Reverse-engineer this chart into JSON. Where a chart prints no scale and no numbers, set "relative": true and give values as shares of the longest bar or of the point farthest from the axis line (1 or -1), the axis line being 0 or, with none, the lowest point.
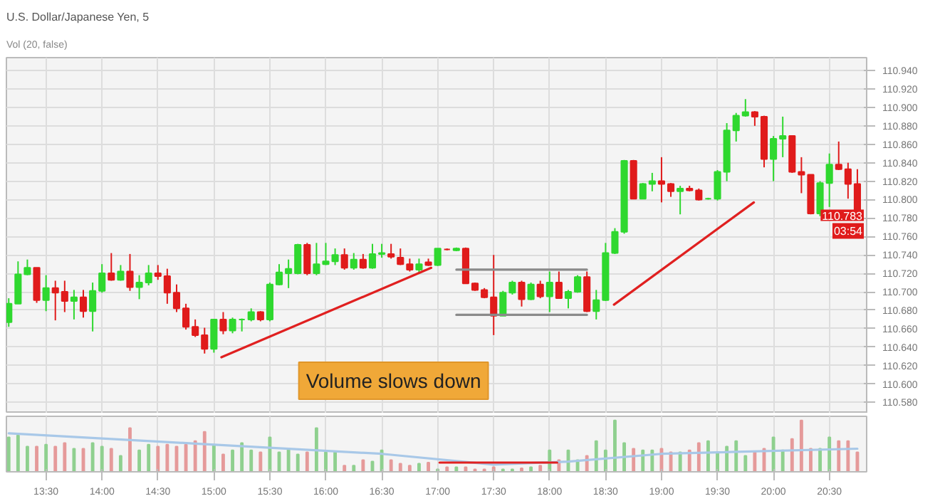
{
  "chart_data": [
    {
      "type": "candlestick",
      "title": "U.S. Dollar/Japanese Yen, 5",
      "subtitle": "Vol (20, false)",
      "x": [
        13.1667,
        13.25,
        13.3333,
        13.4167,
        13.5,
        13.5833,
        13.6667,
        13.75,
        13.8333,
        13.9167,
        14,
        14.0833,
        14.1667,
        14.25,
        14.3333,
        14.4167,
        14.5,
        14.5833,
        14.6667,
        14.75,
        14.8333,
        14.9167,
        15,
        15.0833,
        15.1667,
        15.25,
        15.3333,
        15.4167,
        15.5,
        15.5833,
        15.6667,
        15.75,
        15.8333,
        15.9167,
        16,
        16.0833,
        16.1667,
        16.25,
        16.3333,
        16.4167,
        16.5,
        16.5833,
        16.6667,
        16.75,
        16.8333,
        16.9167,
        17,
        17.0833,
        17.1667,
        17.25,
        17.3333,
        17.4167,
        17.5,
        17.5833,
        17.6667,
        17.75,
        17.8333,
        17.9167,
        18,
        18.0833,
        18.1667,
        18.25,
        18.3333,
        18.4167,
        18.5,
        18.5833,
        18.6667,
        18.75,
        18.8333,
        18.9167,
        19,
        19.0833,
        19.1667,
        19.25,
        19.3333,
        19.4167,
        19.5,
        19.5833,
        19.6667,
        19.75,
        19.8333,
        19.9167,
        20,
        20.0833,
        20.1667,
        20.25,
        20.3333,
        20.4167,
        20.5,
        20.5833,
        20.6667,
        20.75
      ],
      "ohlc": [
        [
          110.667,
          110.693,
          110.662,
          110.687
        ],
        [
          110.687,
          110.733,
          110.687,
          110.719
        ],
        [
          110.719,
          110.735,
          110.718,
          110.726
        ],
        [
          110.726,
          110.726,
          110.688,
          110.691
        ],
        [
          110.691,
          110.718,
          110.679,
          110.704
        ],
        [
          110.704,
          110.712,
          110.669,
          110.699
        ],
        [
          110.7,
          110.712,
          110.678,
          110.69
        ],
        [
          110.69,
          110.702,
          110.67,
          110.694
        ],
        [
          110.694,
          110.702,
          110.672,
          110.679
        ],
        [
          110.679,
          110.71,
          110.657,
          110.701
        ],
        [
          110.701,
          110.73,
          110.699,
          110.72
        ],
        [
          110.72,
          110.742,
          110.712,
          110.713
        ],
        [
          110.713,
          110.729,
          110.712,
          110.722
        ],
        [
          110.722,
          110.741,
          110.701,
          110.705
        ],
        [
          110.705,
          110.718,
          110.692,
          110.71
        ],
        [
          110.71,
          110.729,
          110.707,
          110.72
        ],
        [
          110.72,
          110.729,
          110.713,
          110.717
        ],
        [
          110.717,
          110.725,
          110.687,
          110.699
        ],
        [
          110.699,
          110.708,
          110.678,
          110.682
        ],
        [
          110.682,
          110.687,
          110.659,
          110.662
        ],
        [
          110.662,
          110.67,
          110.651,
          110.653
        ],
        [
          110.653,
          110.661,
          110.633,
          110.638
        ],
        [
          110.638,
          110.67,
          110.634,
          110.67
        ],
        [
          110.67,
          110.678,
          110.654,
          110.658
        ],
        [
          110.658,
          110.672,
          110.655,
          110.67
        ],
        [
          110.67,
          110.671,
          110.657,
          110.67
        ],
        [
          110.67,
          110.682,
          110.668,
          110.678
        ],
        [
          110.678,
          110.679,
          110.668,
          110.67
        ],
        [
          110.67,
          110.71,
          110.668,
          110.708
        ],
        [
          110.708,
          110.73,
          110.707,
          110.721
        ],
        [
          110.72,
          110.735,
          110.704,
          110.725
        ],
        [
          110.72,
          110.752,
          110.719,
          110.751
        ],
        [
          110.751,
          110.753,
          110.718,
          110.72
        ],
        [
          110.72,
          110.753,
          110.718,
          110.73
        ],
        [
          110.73,
          110.753,
          110.729,
          110.733
        ],
        [
          110.733,
          110.747,
          110.729,
          110.74
        ],
        [
          110.74,
          110.747,
          110.724,
          110.726
        ],
        [
          110.726,
          110.742,
          110.724,
          110.735
        ],
        [
          110.735,
          110.741,
          110.725,
          110.726
        ],
        [
          110.726,
          110.752,
          110.725,
          110.741
        ],
        [
          110.741,
          110.752,
          110.737,
          110.742
        ],
        [
          110.741,
          110.752,
          110.736,
          110.738
        ],
        [
          110.737,
          110.747,
          110.729,
          110.73
        ],
        [
          110.73,
          110.736,
          110.722,
          110.724
        ],
        [
          110.724,
          110.736,
          110.721,
          110.73
        ],
        [
          110.732,
          110.736,
          110.728,
          110.729
        ],
        [
          110.729,
          110.747,
          110.728,
          110.747
        ],
        [
          110.746,
          110.747,
          110.745,
          110.746
        ],
        [
          110.745,
          110.748,
          110.744,
          110.747
        ],
        [
          110.747,
          110.748,
          110.709,
          110.709
        ],
        [
          110.709,
          110.71,
          110.701,
          110.702
        ],
        [
          110.702,
          110.704,
          110.693,
          110.694
        ],
        [
          110.694,
          110.74,
          110.653,
          110.674
        ],
        [
          110.674,
          110.701,
          110.674,
          110.699
        ],
        [
          110.699,
          110.712,
          110.697,
          110.71
        ],
        [
          110.71,
          110.712,
          110.684,
          110.692
        ],
        [
          110.692,
          110.71,
          110.691,
          110.708
        ],
        [
          110.708,
          110.712,
          110.693,
          110.695
        ],
        [
          110.695,
          110.722,
          110.678,
          110.71
        ],
        [
          110.71,
          110.722,
          110.693,
          110.693
        ],
        [
          110.693,
          110.702,
          110.682,
          110.7
        ],
        [
          110.7,
          110.718,
          110.699,
          110.716
        ],
        [
          110.716,
          110.722,
          110.678,
          110.679
        ],
        [
          110.679,
          110.702,
          110.67,
          110.691
        ],
        [
          110.691,
          110.753,
          110.69,
          110.742
        ],
        [
          110.742,
          110.769,
          110.741,
          110.765
        ],
        [
          110.765,
          110.843,
          110.763,
          110.842
        ],
        [
          110.842,
          110.843,
          110.801,
          110.801
        ],
        [
          110.801,
          110.818,
          110.801,
          110.817
        ],
        [
          110.817,
          110.829,
          110.809,
          110.82
        ],
        [
          110.82,
          110.846,
          110.797,
          110.817
        ],
        [
          110.817,
          110.818,
          110.803,
          110.809
        ],
        [
          110.809,
          110.815,
          110.784,
          110.812
        ],
        [
          110.812,
          110.815,
          110.809,
          110.81
        ],
        [
          110.81,
          110.812,
          110.799,
          110.8
        ],
        [
          110.801,
          110.802,
          110.8,
          110.801
        ],
        [
          110.801,
          110.832,
          110.799,
          110.83
        ],
        [
          110.83,
          110.883,
          110.82,
          110.875
        ],
        [
          110.875,
          110.894,
          110.863,
          110.891
        ],
        [
          110.891,
          110.909,
          110.89,
          110.895
        ],
        [
          110.895,
          110.896,
          110.88,
          110.89
        ],
        [
          110.89,
          110.891,
          110.835,
          110.844
        ],
        [
          110.844,
          110.869,
          110.82,
          110.866
        ],
        [
          110.866,
          110.89,
          110.846,
          110.869
        ],
        [
          110.869,
          110.869,
          110.829,
          110.83
        ],
        [
          110.83,
          110.846,
          110.807,
          110.827
        ],
        [
          110.827,
          110.827,
          110.784,
          110.785
        ],
        [
          110.785,
          110.82,
          110.782,
          110.818
        ],
        [
          110.818,
          110.85,
          110.792,
          110.838
        ],
        [
          110.838,
          110.863,
          110.832,
          110.833
        ],
        [
          110.833,
          110.84,
          110.801,
          110.817
        ],
        [
          110.817,
          110.833,
          110.78,
          110.783
        ]
      ],
      "colors": [
        "#2fd82f",
        "#2fd82f",
        "#2fd82f",
        "#e01b1b",
        "#2fd82f",
        "#e01b1b",
        "#e01b1b",
        "#2fd82f",
        "#e01b1b",
        "#2fd82f",
        "#2fd82f",
        "#e01b1b",
        "#2fd82f",
        "#e01b1b",
        "#2fd82f",
        "#2fd82f",
        "#e01b1b",
        "#e01b1b",
        "#e01b1b",
        "#e01b1b",
        "#e01b1b",
        "#e01b1b",
        "#2fd82f",
        "#e01b1b",
        "#2fd82f",
        "#2fd82f",
        "#2fd82f",
        "#e01b1b",
        "#2fd82f",
        "#2fd82f",
        "#2fd82f",
        "#2fd82f",
        "#e01b1b",
        "#2fd82f",
        "#2fd82f",
        "#2fd82f",
        "#e01b1b",
        "#2fd82f",
        "#e01b1b",
        "#2fd82f",
        "#2fd82f",
        "#e01b1b",
        "#e01b1b",
        "#e01b1b",
        "#2fd82f",
        "#e01b1b",
        "#2fd82f",
        "#e01b1b",
        "#2fd82f",
        "#e01b1b",
        "#e01b1b",
        "#e01b1b",
        "#e01b1b",
        "#2fd82f",
        "#2fd82f",
        "#e01b1b",
        "#2fd82f",
        "#e01b1b",
        "#2fd82f",
        "#e01b1b",
        "#2fd82f",
        "#2fd82f",
        "#e01b1b",
        "#2fd82f",
        "#2fd82f",
        "#2fd82f",
        "#2fd82f",
        "#e01b1b",
        "#2fd82f",
        "#2fd82f",
        "#e01b1b",
        "#e01b1b",
        "#2fd82f",
        "#e01b1b",
        "#e01b1b",
        "#2fd82f",
        "#2fd82f",
        "#2fd82f",
        "#2fd82f",
        "#2fd82f",
        "#e01b1b",
        "#e01b1b",
        "#2fd82f",
        "#2fd82f",
        "#e01b1b",
        "#e01b1b",
        "#e01b1b",
        "#2fd82f",
        "#2fd82f",
        "#e01b1b",
        "#e01b1b",
        "#e01b1b"
      ],
      "series": [
        {
          "type": "line",
          "x": [
            15.067,
            16.942
          ],
          "values": [
            110.629,
            110.726
          ],
          "color": "#e02020"
        },
        {
          "type": "line",
          "x": [
            18.575,
            19.825
          ],
          "values": [
            110.686,
            110.797
          ],
          "color": "#e02020"
        },
        {
          "type": "line",
          "x": [
            17.167,
            18.333
          ],
          "values": [
            110.724,
            110.724
          ],
          "color": "#8a8a8a"
        },
        {
          "type": "line",
          "x": [
            17.167,
            18.333
          ],
          "values": [
            110.675,
            110.675
          ],
          "color": "#8a8a8a"
        }
      ],
      "xlim": [
        13.146,
        20.833
      ],
      "ylim": [
        110.568,
        110.954
      ],
      "xticks": [
        {
          "value": 13.5,
          "label": null
        },
        {
          "value": 14,
          "label": null
        },
        {
          "value": 14.5,
          "label": null
        },
        {
          "value": 15,
          "label": null
        },
        {
          "value": 15.5,
          "label": null
        },
        {
          "value": 16,
          "label": null
        },
        {
          "value": 16.5,
          "label": null
        },
        {
          "value": 17,
          "label": null
        },
        {
          "value": 17.5,
          "label": null
        },
        {
          "value": 18,
          "label": null
        },
        {
          "value": 18.5,
          "label": null
        },
        {
          "value": 19,
          "label": null
        },
        {
          "value": 19.5,
          "label": null
        },
        {
          "value": 20,
          "label": null
        },
        {
          "value": 20.5,
          "label": null
        }
      ],
      "yticks": [
        {
          "value": 110.58,
          "label": "110.580"
        },
        {
          "value": 110.6,
          "label": "110.600"
        },
        {
          "value": 110.62,
          "label": "110.620"
        },
        {
          "value": 110.64,
          "label": "110.640"
        },
        {
          "value": 110.66,
          "label": "110.660"
        },
        {
          "value": 110.68,
          "label": "110.680"
        },
        {
          "value": 110.7,
          "label": "110.700"
        },
        {
          "value": 110.72,
          "label": "110.720"
        },
        {
          "value": 110.74,
          "label": "110.740"
        },
        {
          "value": 110.76,
          "label": "110.760"
        },
        {
          "value": 110.78,
          "label": "110.780"
        },
        {
          "value": 110.8,
          "label": "110.800"
        },
        {
          "value": 110.82,
          "label": "110.820"
        },
        {
          "value": 110.84,
          "label": "110.840"
        },
        {
          "value": 110.86,
          "label": "110.860"
        },
        {
          "value": 110.88,
          "label": "110.880"
        },
        {
          "value": 110.9,
          "label": "110.900"
        },
        {
          "value": 110.92,
          "label": "110.920"
        },
        {
          "value": 110.94,
          "label": "110.940"
        }
      ],
      "grid": true,
      "tick_labels": "y",
      "annotations": [
        "Volume slows down",
        "110.783",
        "03:54"
      ]
    },
    {
      "type": "bar",
      "relative": true,
      "x": [
        13.1667,
        13.25,
        13.3333,
        13.4167,
        13.5,
        13.5833,
        13.6667,
        13.75,
        13.8333,
        13.9167,
        14,
        14.0833,
        14.1667,
        14.25,
        14.3333,
        14.4167,
        14.5,
        14.5833,
        14.6667,
        14.75,
        14.8333,
        14.9167,
        15,
        15.0833,
        15.1667,
        15.25,
        15.3333,
        15.4167,
        15.5,
        15.5833,
        15.6667,
        15.75,
        15.8333,
        15.9167,
        16,
        16.0833,
        16.1667,
        16.25,
        16.3333,
        16.4167,
        16.5,
        16.5833,
        16.6667,
        16.75,
        16.8333,
        16.9167,
        17,
        17.0833,
        17.1667,
        17.25,
        17.3333,
        17.4167,
        17.5,
        17.5833,
        17.6667,
        17.75,
        17.8333,
        17.9167,
        18,
        18.0833,
        18.1667,
        18.25,
        18.3333,
        18.4167,
        18.5,
        18.5833,
        18.6667,
        18.75,
        18.8333,
        18.9167,
        19,
        19.0833,
        19.1667,
        19.25,
        19.3333,
        19.4167,
        19.5,
        19.5833,
        19.6667,
        19.75,
        19.8333,
        19.9167,
        20,
        20.0833,
        20.1667,
        20.25,
        20.3333,
        20.4167,
        20.5,
        20.5833,
        20.6667,
        20.75
      ],
      "series": [
        {
          "type": "bar",
          "values": [
            0.67,
            0.71,
            0.49,
            0.49,
            0.53,
            0.49,
            0.56,
            0.45,
            0.45,
            0.56,
            0.49,
            0.45,
            0.31,
            0.85,
            0.42,
            0.53,
            0.49,
            0.53,
            0.49,
            0.53,
            0.6,
            0.78,
            0.53,
            0.34,
            0.42,
            0.56,
            0.42,
            0.38,
            0.67,
            0.38,
            0.45,
            0.34,
            0.38,
            0.85,
            0.38,
            0.38,
            0.12,
            0.12,
            0.23,
            0.2,
            0.42,
            0.23,
            0.16,
            0.12,
            0.16,
            0.18,
            0.05,
            0.09,
            0.09,
            0.09,
            0.05,
            0.05,
            0.09,
            0.05,
            0.05,
            0.07,
            0.09,
            0.12,
            0.42,
            0.23,
            0.42,
            0.23,
            0.31,
            0.6,
            0.42,
            1,
            0.56,
            0.45,
            0.42,
            0.42,
            0.45,
            0.38,
            0.38,
            0.42,
            0.56,
            0.6,
            0.38,
            0.49,
            0.6,
            0.31,
            0.38,
            0.45,
            0.67,
            0.42,
            0.64,
            1,
            0.45,
            0.45,
            0.67,
            0.6,
            0.6,
            0.38
          ],
          "colors": [
            "#8fd08f",
            "#8fd08f",
            "#8fd08f",
            "#e59a9a",
            "#8fd08f",
            "#e59a9a",
            "#e59a9a",
            "#8fd08f",
            "#e59a9a",
            "#8fd08f",
            "#8fd08f",
            "#e59a9a",
            "#8fd08f",
            "#e59a9a",
            "#8fd08f",
            "#8fd08f",
            "#e59a9a",
            "#e59a9a",
            "#e59a9a",
            "#e59a9a",
            "#e59a9a",
            "#e59a9a",
            "#8fd08f",
            "#e59a9a",
            "#8fd08f",
            "#8fd08f",
            "#8fd08f",
            "#e59a9a",
            "#8fd08f",
            "#8fd08f",
            "#8fd08f",
            "#8fd08f",
            "#e59a9a",
            "#8fd08f",
            "#8fd08f",
            "#8fd08f",
            "#e59a9a",
            "#8fd08f",
            "#e59a9a",
            "#8fd08f",
            "#8fd08f",
            "#e59a9a",
            "#e59a9a",
            "#e59a9a",
            "#8fd08f",
            "#e59a9a",
            "#8fd08f",
            "#e59a9a",
            "#8fd08f",
            "#e59a9a",
            "#e59a9a",
            "#e59a9a",
            "#e59a9a",
            "#8fd08f",
            "#8fd08f",
            "#e59a9a",
            "#8fd08f",
            "#e59a9a",
            "#8fd08f",
            "#e59a9a",
            "#8fd08f",
            "#8fd08f",
            "#e59a9a",
            "#8fd08f",
            "#8fd08f",
            "#8fd08f",
            "#8fd08f",
            "#e59a9a",
            "#8fd08f",
            "#8fd08f",
            "#e59a9a",
            "#e59a9a",
            "#8fd08f",
            "#e59a9a",
            "#e59a9a",
            "#8fd08f",
            "#8fd08f",
            "#8fd08f",
            "#8fd08f",
            "#8fd08f",
            "#e59a9a",
            "#e59a9a",
            "#8fd08f",
            "#8fd08f",
            "#e59a9a",
            "#e59a9a",
            "#e59a9a",
            "#8fd08f",
            "#8fd08f",
            "#e59a9a",
            "#e59a9a",
            "#e59a9a"
          ]
        },
        {
          "type": "line",
          "x": [
            13.1667,
            14.8333,
            16.5,
            17.5,
            18.1667,
            19,
            20.75
          ],
          "values": [
            0.75,
            0.55,
            0.35,
            0.14,
            0.2,
            0.35,
            0.45
          ],
          "color": "#a8c8e8"
        },
        {
          "type": "line",
          "x": [
            17.017,
            18.067
          ],
          "values": [
            0.18,
            0.18
          ],
          "color": "#e02020"
        }
      ],
      "xlim": [
        13.146,
        20.833
      ],
      "xticks": [
        {
          "value": 13.5,
          "label": "13:30"
        },
        {
          "value": 14,
          "label": "14:00"
        },
        {
          "value": 14.5,
          "label": "14:30"
        },
        {
          "value": 15,
          "label": "15:00"
        },
        {
          "value": 15.5,
          "label": "15:30"
        },
        {
          "value": 16,
          "label": "16:00"
        },
        {
          "value": 16.5,
          "label": "16:30"
        },
        {
          "value": 17,
          "label": "17:00"
        },
        {
          "value": 17.5,
          "label": "17:30"
        },
        {
          "value": 18,
          "label": "18:00"
        },
        {
          "value": 18.5,
          "label": "18:30"
        },
        {
          "value": 19,
          "label": "19:00"
        },
        {
          "value": 19.5,
          "label": "19:30"
        },
        {
          "value": 20,
          "label": "20:00"
        },
        {
          "value": 20.5,
          "label": "20:30"
        }
      ],
      "grid": "x",
      "tick_labels": "x"
    }
  ]
}
